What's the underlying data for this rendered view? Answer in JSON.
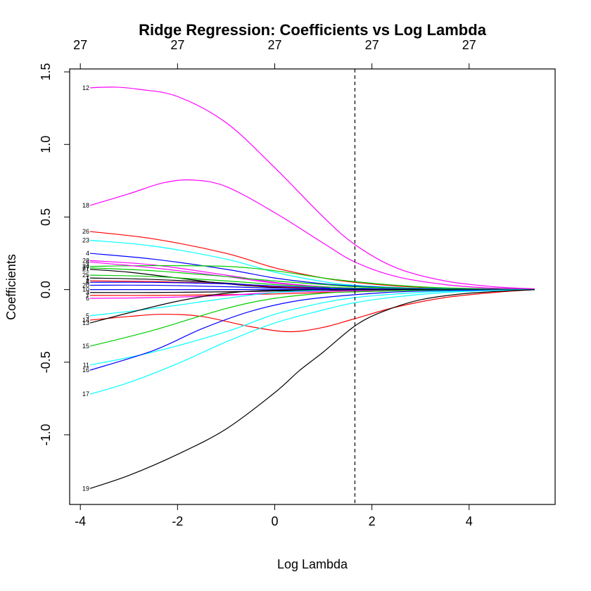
{
  "chart_data": {
    "type": "line",
    "title": "Ridge Regression: Coefficients vs Log Lambda",
    "xlabel": "Log Lambda",
    "ylabel": "Coefficients",
    "xlim": [
      -4.22,
      5.77
    ],
    "ylim": [
      -1.48,
      1.52
    ],
    "x_ticks": [
      -4,
      -2,
      0,
      2,
      4
    ],
    "x_tick_labels": [
      "-4",
      "-2",
      "0",
      "2",
      "4"
    ],
    "y_ticks": [
      -1.0,
      -0.5,
      0.0,
      0.5,
      1.0,
      1.5
    ],
    "y_tick_labels": [
      "-1.0",
      "-0.5",
      "0.0",
      "0.5",
      "1.0",
      "1.5"
    ],
    "top_ticks": [
      -4,
      -2,
      0,
      2,
      4
    ],
    "top_tick_labels": [
      "27",
      "27",
      "27",
      "27",
      "27"
    ],
    "vline": {
      "x": 1.65,
      "style": "dashed",
      "color": "#000000"
    },
    "grid": false,
    "legend": "none",
    "series": [
      {
        "label": "12",
        "color": "#ff00ff",
        "points": [
          [
            -3.8,
            1.39
          ],
          [
            -3.3,
            1.395
          ],
          [
            -2.8,
            1.38
          ],
          [
            -2.0,
            1.33
          ],
          [
            -1.0,
            1.15
          ],
          [
            0.0,
            0.84
          ],
          [
            1.0,
            0.5
          ],
          [
            1.65,
            0.31
          ],
          [
            2.5,
            0.15
          ],
          [
            3.5,
            0.06
          ],
          [
            4.5,
            0.02
          ],
          [
            5.35,
            0.005
          ]
        ]
      },
      {
        "label": "18",
        "color": "#ff00ff",
        "points": [
          [
            -3.8,
            0.58
          ],
          [
            -3.0,
            0.66
          ],
          [
            -2.3,
            0.735
          ],
          [
            -1.7,
            0.755
          ],
          [
            -1.0,
            0.71
          ],
          [
            0.0,
            0.53
          ],
          [
            1.0,
            0.32
          ],
          [
            1.65,
            0.19
          ],
          [
            2.5,
            0.09
          ],
          [
            3.5,
            0.035
          ],
          [
            4.5,
            0.01
          ],
          [
            5.35,
            0.005
          ]
        ]
      },
      {
        "label": "26",
        "color": "#ff0000",
        "points": [
          [
            -3.8,
            0.4
          ],
          [
            -2.5,
            0.35
          ],
          [
            -1.0,
            0.25
          ],
          [
            0.0,
            0.15
          ],
          [
            1.0,
            0.08
          ],
          [
            1.65,
            0.05
          ],
          [
            2.5,
            0.025
          ],
          [
            3.5,
            0.01
          ],
          [
            5.35,
            0.0
          ]
        ]
      },
      {
        "label": "23",
        "color": "#00ffff",
        "points": [
          [
            -3.8,
            0.34
          ],
          [
            -2.5,
            0.3
          ],
          [
            -1.0,
            0.21
          ],
          [
            0.0,
            0.12
          ],
          [
            1.0,
            0.055
          ],
          [
            1.65,
            0.03
          ],
          [
            3.0,
            0.01
          ],
          [
            5.35,
            0.0
          ]
        ]
      },
      {
        "label": "4",
        "color": "#0000ff",
        "points": [
          [
            -3.8,
            0.25
          ],
          [
            -2.5,
            0.21
          ],
          [
            -1.0,
            0.14
          ],
          [
            0.0,
            0.08
          ],
          [
            1.0,
            0.04
          ],
          [
            1.65,
            0.025
          ],
          [
            3.0,
            0.008
          ],
          [
            5.35,
            0.0
          ]
        ]
      },
      {
        "label": "22",
        "color": "#ff00ff",
        "points": [
          [
            -3.8,
            0.2
          ],
          [
            -2.5,
            0.17
          ],
          [
            -1.0,
            0.1
          ],
          [
            0.0,
            0.05
          ],
          [
            1.0,
            0.02
          ],
          [
            1.65,
            0.01
          ],
          [
            3.0,
            0.003
          ],
          [
            5.35,
            0.0
          ]
        ]
      },
      {
        "label": "24",
        "color": "#00cd00",
        "points": [
          [
            -3.8,
            0.16
          ],
          [
            -2.5,
            0.165
          ],
          [
            -1.0,
            0.16
          ],
          [
            0.0,
            0.13
          ],
          [
            1.0,
            0.08
          ],
          [
            1.65,
            0.055
          ],
          [
            2.5,
            0.03
          ],
          [
            3.5,
            0.012
          ],
          [
            5.35,
            0.0
          ]
        ]
      },
      {
        "label": "9",
        "color": "#ff00ff",
        "points": [
          [
            -3.8,
            0.19
          ],
          [
            -2.5,
            0.15
          ],
          [
            -1.0,
            0.09
          ],
          [
            0.0,
            0.045
          ],
          [
            1.0,
            0.02
          ],
          [
            1.65,
            0.01
          ],
          [
            3.0,
            0.003
          ],
          [
            5.35,
            0.0
          ]
        ]
      },
      {
        "label": "27",
        "color": "#00cd00",
        "points": [
          [
            -3.8,
            0.15
          ],
          [
            -2.5,
            0.13
          ],
          [
            -1.0,
            0.09
          ],
          [
            0.0,
            0.06
          ],
          [
            1.0,
            0.035
          ],
          [
            1.65,
            0.02
          ],
          [
            3.0,
            0.007
          ],
          [
            5.35,
            0.0
          ]
        ]
      },
      {
        "label": "21",
        "color": "#000000",
        "points": [
          [
            -3.8,
            0.14
          ],
          [
            -3.0,
            0.12
          ],
          [
            -2.0,
            0.08
          ],
          [
            -1.0,
            0.04
          ],
          [
            0.0,
            0.015
          ],
          [
            1.0,
            0.005
          ],
          [
            1.65,
            0.002
          ],
          [
            5.35,
            0.0
          ]
        ]
      },
      {
        "label": "25",
        "color": "#00cd00",
        "points": [
          [
            -3.8,
            0.1
          ],
          [
            -2.5,
            0.09
          ],
          [
            -1.0,
            0.06
          ],
          [
            0.0,
            0.035
          ],
          [
            1.0,
            0.018
          ],
          [
            1.65,
            0.01
          ],
          [
            3.0,
            0.003
          ],
          [
            5.35,
            0.0
          ]
        ]
      },
      {
        "label": "1",
        "color": "#000000",
        "points": [
          [
            -3.8,
            0.08
          ],
          [
            -2.5,
            0.07
          ],
          [
            -1.0,
            0.045
          ],
          [
            0.0,
            0.02
          ],
          [
            1.0,
            0.01
          ],
          [
            1.65,
            0.005
          ],
          [
            5.35,
            0.0
          ]
        ]
      },
      {
        "label": "2",
        "color": "#ff0000",
        "points": [
          [
            -3.8,
            0.06
          ],
          [
            -2.5,
            0.055
          ],
          [
            -1.0,
            0.04
          ],
          [
            0.0,
            0.02
          ],
          [
            1.0,
            0.01
          ],
          [
            1.65,
            0.005
          ],
          [
            5.35,
            0.0
          ]
        ]
      },
      {
        "label": "8",
        "color": "#0000ff",
        "points": [
          [
            -3.8,
            0.05
          ],
          [
            -2.5,
            0.05
          ],
          [
            -1.0,
            0.04
          ],
          [
            0.0,
            0.025
          ],
          [
            1.0,
            0.012
          ],
          [
            1.65,
            0.006
          ],
          [
            5.35,
            0.0
          ]
        ]
      },
      {
        "label": "20",
        "color": "#0000ff",
        "points": [
          [
            -3.8,
            0.03
          ],
          [
            -2.5,
            0.03
          ],
          [
            -1.0,
            0.02
          ],
          [
            0.0,
            0.01
          ],
          [
            1.65,
            0.003
          ],
          [
            5.35,
            0.0
          ]
        ]
      },
      {
        "label": "10",
        "color": "#0000ff",
        "points": [
          [
            -3.8,
            0.0
          ],
          [
            -2.0,
            0.0
          ],
          [
            0.0,
            0.0
          ],
          [
            1.65,
            0.0
          ],
          [
            5.35,
            0.0
          ]
        ]
      },
      {
        "label": "3",
        "color": "#000000",
        "points": [
          [
            -3.8,
            -0.02
          ],
          [
            -2.5,
            -0.02
          ],
          [
            -1.0,
            -0.015
          ],
          [
            0.0,
            -0.01
          ],
          [
            1.65,
            -0.005
          ],
          [
            5.35,
            0.0
          ]
        ]
      },
      {
        "label": "7",
        "color": "#ff0000",
        "points": [
          [
            -3.8,
            -0.04
          ],
          [
            -2.5,
            -0.04
          ],
          [
            -1.0,
            -0.035
          ],
          [
            0.0,
            -0.03
          ],
          [
            1.0,
            -0.02
          ],
          [
            1.65,
            -0.015
          ],
          [
            3.0,
            -0.005
          ],
          [
            5.35,
            0.0
          ]
        ]
      },
      {
        "label": "6",
        "color": "#ff00ff",
        "points": [
          [
            -3.8,
            -0.06
          ],
          [
            -2.5,
            -0.055
          ],
          [
            -1.0,
            -0.04
          ],
          [
            0.0,
            -0.02
          ],
          [
            1.65,
            -0.008
          ],
          [
            5.35,
            0.0
          ]
        ]
      },
      {
        "label": "5",
        "color": "#00ffff",
        "points": [
          [
            -3.8,
            -0.18
          ],
          [
            -2.5,
            -0.13
          ],
          [
            -1.0,
            -0.06
          ],
          [
            0.0,
            -0.02
          ],
          [
            1.0,
            -0.005
          ],
          [
            1.65,
            0.0
          ],
          [
            5.35,
            0.0
          ]
        ]
      },
      {
        "label": "14",
        "color": "#ff0000",
        "points": [
          [
            -3.8,
            -0.21
          ],
          [
            -3.0,
            -0.185
          ],
          [
            -2.3,
            -0.17
          ],
          [
            -1.5,
            -0.185
          ],
          [
            -0.5,
            -0.255
          ],
          [
            0.3,
            -0.29
          ],
          [
            1.0,
            -0.26
          ],
          [
            1.65,
            -0.2
          ],
          [
            2.5,
            -0.12
          ],
          [
            3.5,
            -0.055
          ],
          [
            4.5,
            -0.02
          ],
          [
            5.35,
            0.0
          ]
        ]
      },
      {
        "label": "13",
        "color": "#000000",
        "points": [
          [
            -3.8,
            -0.23
          ],
          [
            -3.0,
            -0.16
          ],
          [
            -2.0,
            -0.08
          ],
          [
            -1.0,
            -0.025
          ],
          [
            0.0,
            -0.005
          ],
          [
            1.65,
            0.0
          ],
          [
            5.35,
            0.0
          ]
        ]
      },
      {
        "label": "15",
        "color": "#00cd00",
        "points": [
          [
            -3.8,
            -0.39
          ],
          [
            -2.5,
            -0.28
          ],
          [
            -1.0,
            -0.13
          ],
          [
            0.0,
            -0.06
          ],
          [
            1.0,
            -0.025
          ],
          [
            1.65,
            -0.015
          ],
          [
            3.0,
            -0.005
          ],
          [
            5.35,
            0.0
          ]
        ]
      },
      {
        "label": "11",
        "color": "#00ffff",
        "points": [
          [
            -3.8,
            -0.52
          ],
          [
            -2.5,
            -0.43
          ],
          [
            -1.0,
            -0.29
          ],
          [
            0.0,
            -0.17
          ],
          [
            1.0,
            -0.09
          ],
          [
            1.65,
            -0.055
          ],
          [
            2.5,
            -0.03
          ],
          [
            3.5,
            -0.012
          ],
          [
            5.35,
            0.0
          ]
        ]
      },
      {
        "label": "16",
        "color": "#0000ff",
        "points": [
          [
            -3.8,
            -0.555
          ],
          [
            -2.5,
            -0.42
          ],
          [
            -1.5,
            -0.27
          ],
          [
            -0.5,
            -0.15
          ],
          [
            0.5,
            -0.075
          ],
          [
            1.65,
            -0.035
          ],
          [
            3.0,
            -0.01
          ],
          [
            5.35,
            0.0
          ]
        ]
      },
      {
        "label": "17",
        "color": "#00ffff",
        "points": [
          [
            -3.8,
            -0.72
          ],
          [
            -3.0,
            -0.64
          ],
          [
            -2.0,
            -0.51
          ],
          [
            -1.0,
            -0.36
          ],
          [
            0.0,
            -0.23
          ],
          [
            1.0,
            -0.14
          ],
          [
            1.65,
            -0.09
          ],
          [
            2.5,
            -0.05
          ],
          [
            3.5,
            -0.02
          ],
          [
            4.5,
            -0.006
          ],
          [
            5.35,
            0.0
          ]
        ]
      },
      {
        "label": "19",
        "color": "#000000",
        "points": [
          [
            -3.8,
            -1.37
          ],
          [
            -3.0,
            -1.28
          ],
          [
            -2.0,
            -1.135
          ],
          [
            -1.0,
            -0.96
          ],
          [
            0.0,
            -0.71
          ],
          [
            0.5,
            -0.56
          ],
          [
            1.0,
            -0.43
          ],
          [
            1.65,
            -0.25
          ],
          [
            2.2,
            -0.155
          ],
          [
            3.0,
            -0.07
          ],
          [
            4.0,
            -0.025
          ],
          [
            5.35,
            0.0
          ]
        ]
      }
    ]
  }
}
